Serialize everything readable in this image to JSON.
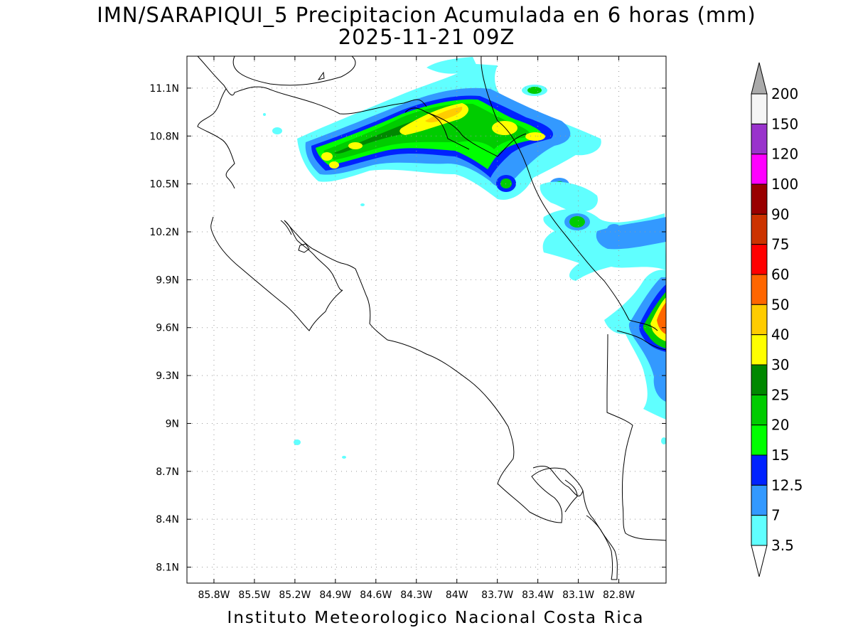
{
  "header": {
    "title": "IMN/SARAPIQUI_5 Precipitacion Acumulada en 6 horas (mm)",
    "valid_time": "2025-11-21 09Z"
  },
  "footer": {
    "credit": "Instituto Meteorologico Nacional Costa Rica"
  },
  "map": {
    "lon_range": [
      -86.0,
      -82.45
    ],
    "lat_range": [
      8.0,
      11.3
    ],
    "lon_ticks": [
      "85.8W",
      "85.5W",
      "85.2W",
      "84.9W",
      "84.6W",
      "84.3W",
      "84W",
      "83.7W",
      "83.4W",
      "83.1W",
      "82.8W"
    ],
    "lat_ticks": [
      "8.1N",
      "8.4N",
      "8.7N",
      "9N",
      "9.3N",
      "9.6N",
      "9.9N",
      "10.2N",
      "10.5N",
      "10.8N",
      "11.1N"
    ],
    "grid": "dotted",
    "frame_color": "#000000",
    "coastline_color": "#000000"
  },
  "legend": {
    "placement": "right",
    "units": "mm",
    "labels": [
      "3.5",
      "7",
      "12.5",
      "15",
      "20",
      "25",
      "30",
      "40",
      "50",
      "60",
      "75",
      "90",
      "100",
      "120",
      "150",
      "200"
    ],
    "colors": [
      "#ffffff",
      "#60ffff",
      "#3399ff",
      "#0022ff",
      "#00ff00",
      "#00cc00",
      "#008800",
      "#ffff00",
      "#ffcc00",
      "#ff6600",
      "#ff0000",
      "#cc3300",
      "#990000",
      "#ff00ff",
      "#9933cc",
      "#f5f5f5",
      "#aaaaaa"
    ]
  }
}
